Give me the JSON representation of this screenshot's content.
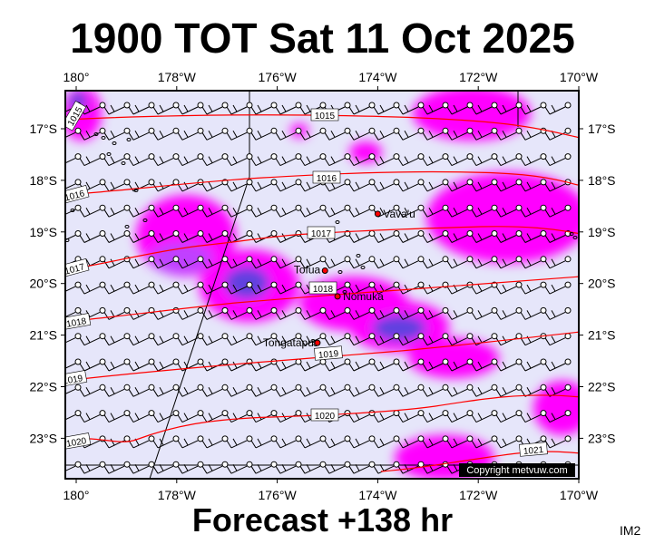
{
  "header": {
    "title": "1900 TOT Sat 11 Oct 2025"
  },
  "footer": {
    "forecast": "Forecast +138 hr",
    "image_code": "IM2"
  },
  "copyright": "Copyright metvuw.com",
  "axes": {
    "lon_labels": [
      "180°",
      "178°W",
      "176°W",
      "174°W",
      "172°W",
      "170°W"
    ],
    "lat_labels": [
      "17°S",
      "18°S",
      "19°S",
      "20°S",
      "21°S",
      "22°S",
      "23°S"
    ]
  },
  "isobars": [
    "1015",
    "1015",
    "1016",
    "1016",
    "1017",
    "1017",
    "1018",
    "1018",
    "1019",
    "1019",
    "1020",
    "1020",
    "1021"
  ],
  "places": [
    {
      "name": "Vava'u",
      "lon": -174.0,
      "lat": -18.65
    },
    {
      "name": "Tofua",
      "lon": -175.05,
      "lat": -19.75
    },
    {
      "name": "Nomuka",
      "lon": -174.8,
      "lat": -20.25
    },
    {
      "name": "Tongatapu",
      "lon": -175.2,
      "lat": -21.15
    }
  ],
  "colors": {
    "background": "#e6e6fa",
    "isobar": "#ff0000",
    "rain_light": "#ff00ff",
    "rain_medium": "#c040ff",
    "rain_heavy": "#6040e0",
    "place_marker": "#ff0000"
  }
}
